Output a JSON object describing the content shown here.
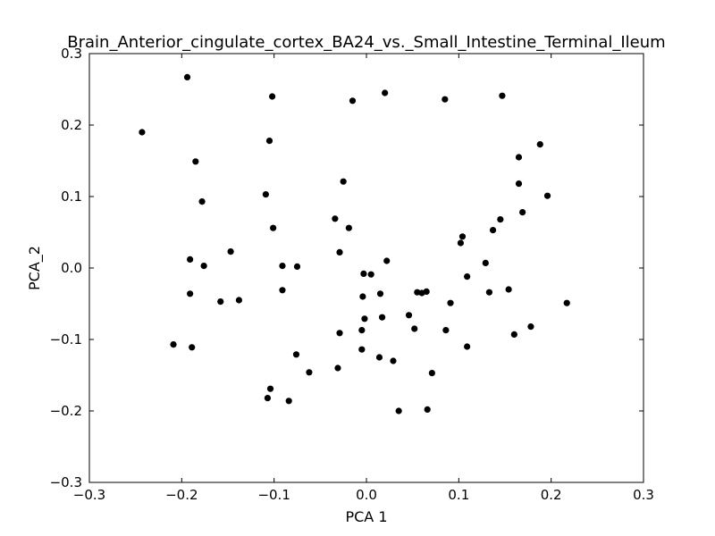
{
  "chart_data": {
    "type": "scatter",
    "title": "Brain_Anterior_cingulate_cortex_BA24_vs._Small_Intestine_Terminal_Ileum",
    "xlabel": "PCA 1",
    "ylabel": "PCA_2",
    "xlim": [
      -0.3,
      0.3
    ],
    "ylim": [
      -0.3,
      0.3
    ],
    "xticks": [
      "−0.3",
      "−0.2",
      "−0.1",
      "0.0",
      "0.1",
      "0.2",
      "0.3"
    ],
    "yticks": [
      "−0.3",
      "−0.2",
      "−0.1",
      "0.0",
      "0.1",
      "0.2",
      "0.3"
    ],
    "grid": false,
    "marker_color": "#000000",
    "points": [
      [
        -0.194,
        0.267
      ],
      [
        -0.243,
        0.19
      ],
      [
        -0.102,
        0.24
      ],
      [
        -0.015,
        0.234
      ],
      [
        0.02,
        0.245
      ],
      [
        0.085,
        0.236
      ],
      [
        0.147,
        0.241
      ],
      [
        -0.105,
        0.178
      ],
      [
        -0.185,
        0.149
      ],
      [
        0.188,
        0.173
      ],
      [
        0.165,
        0.155
      ],
      [
        -0.025,
        0.121
      ],
      [
        0.165,
        0.118
      ],
      [
        -0.178,
        0.093
      ],
      [
        -0.109,
        0.103
      ],
      [
        0.196,
        0.101
      ],
      [
        0.169,
        0.078
      ],
      [
        -0.034,
        0.069
      ],
      [
        -0.101,
        0.056
      ],
      [
        -0.019,
        0.056
      ],
      [
        0.145,
        0.068
      ],
      [
        0.137,
        0.053
      ],
      [
        0.104,
        0.044
      ],
      [
        0.102,
        0.035
      ],
      [
        -0.147,
        0.023
      ],
      [
        -0.029,
        0.022
      ],
      [
        -0.191,
        0.012
      ],
      [
        0.022,
        0.01
      ],
      [
        -0.176,
        0.003
      ],
      [
        -0.091,
        0.003
      ],
      [
        -0.075,
        0.002
      ],
      [
        0.129,
        0.007
      ],
      [
        -0.003,
        -0.008
      ],
      [
        0.005,
        -0.009
      ],
      [
        0.109,
        -0.012
      ],
      [
        -0.091,
        -0.031
      ],
      [
        -0.191,
        -0.036
      ],
      [
        0.015,
        -0.036
      ],
      [
        0.055,
        -0.034
      ],
      [
        0.06,
        -0.035
      ],
      [
        0.065,
        -0.033
      ],
      [
        0.133,
        -0.034
      ],
      [
        0.154,
        -0.03
      ],
      [
        -0.004,
        -0.04
      ],
      [
        -0.158,
        -0.047
      ],
      [
        -0.138,
        -0.045
      ],
      [
        0.091,
        -0.049
      ],
      [
        0.217,
        -0.049
      ],
      [
        0.046,
        -0.066
      ],
      [
        0.017,
        -0.069
      ],
      [
        -0.002,
        -0.071
      ],
      [
        0.052,
        -0.085
      ],
      [
        -0.005,
        -0.087
      ],
      [
        0.086,
        -0.087
      ],
      [
        0.178,
        -0.082
      ],
      [
        -0.029,
        -0.091
      ],
      [
        0.16,
        -0.093
      ],
      [
        -0.209,
        -0.107
      ],
      [
        -0.189,
        -0.111
      ],
      [
        0.109,
        -0.11
      ],
      [
        -0.005,
        -0.114
      ],
      [
        -0.076,
        -0.121
      ],
      [
        0.014,
        -0.125
      ],
      [
        0.029,
        -0.13
      ],
      [
        -0.031,
        -0.14
      ],
      [
        -0.062,
        -0.146
      ],
      [
        0.071,
        -0.147
      ],
      [
        -0.104,
        -0.169
      ],
      [
        -0.107,
        -0.182
      ],
      [
        -0.084,
        -0.186
      ],
      [
        0.035,
        -0.2
      ],
      [
        0.066,
        -0.198
      ]
    ]
  }
}
